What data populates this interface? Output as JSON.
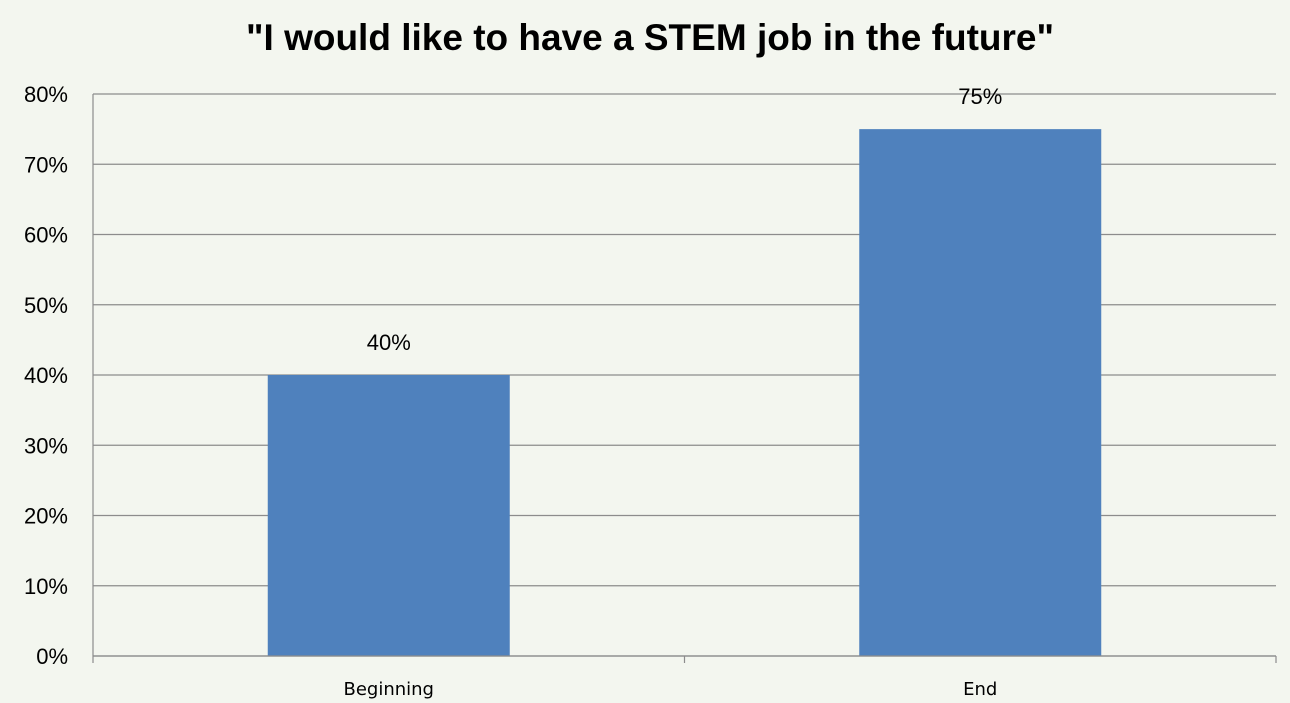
{
  "chart_data": {
    "type": "bar",
    "title": "\"I would like to have a STEM job in the future\"",
    "xlabel": "",
    "ylabel": "",
    "categories": [
      "Beginning",
      "End"
    ],
    "values": [
      40,
      75
    ],
    "data_labels": [
      "40%",
      "75%"
    ],
    "ylim": [
      0,
      80
    ],
    "y_ticks": [
      0,
      10,
      20,
      30,
      40,
      50,
      60,
      70,
      80
    ],
    "y_tick_labels": [
      "0%",
      "10%",
      "20%",
      "30%",
      "40%",
      "50%",
      "60%",
      "70%",
      "80%"
    ],
    "grid": true,
    "legend": "none",
    "colors": {
      "bar": "#4f81bd",
      "background": "#f3f6ef",
      "grid": "#8c8c8c"
    }
  }
}
